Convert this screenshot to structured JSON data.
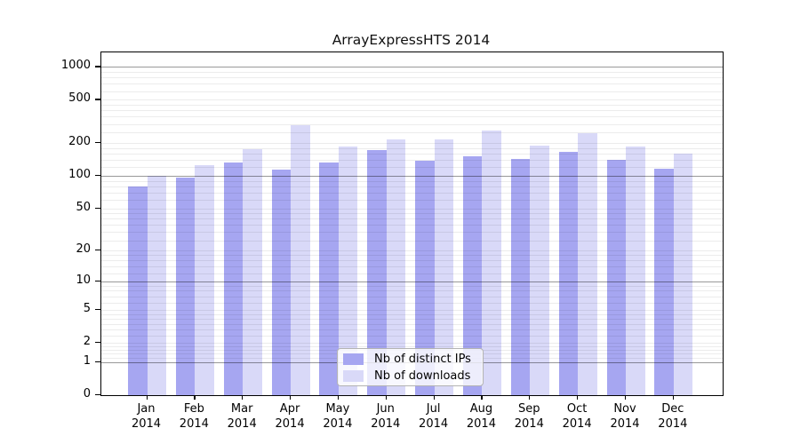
{
  "chart_data": {
    "type": "bar",
    "title": "ArrayExpressHTS 2014",
    "categories": [
      "Jan",
      "Feb",
      "Mar",
      "Apr",
      "May",
      "Jun",
      "Jul",
      "Aug",
      "Sep",
      "Oct",
      "Nov",
      "Dec"
    ],
    "x_tick_year_line": "2014",
    "series": [
      {
        "name": "Nb of distinct IPs",
        "color": "#a6a6f1",
        "values": [
          80,
          96,
          132,
          114,
          132,
          172,
          137,
          152,
          143,
          165,
          141,
          117
        ]
      },
      {
        "name": "Nb of downloads",
        "color": "#d9d9f8",
        "values": [
          100,
          125,
          177,
          292,
          186,
          216,
          216,
          262,
          189,
          245,
          185,
          161
        ]
      }
    ],
    "y_ticks": [
      1000,
      500,
      200,
      100,
      50,
      20,
      10,
      5,
      2,
      1,
      0
    ],
    "y_scale": "log10(1+x)",
    "ylim": [
      0,
      1400
    ],
    "grid": true,
    "legend_position": "lower center",
    "colors": {
      "grid_minor": "#ececec",
      "grid_major": "#999999",
      "axis": "#000000",
      "background": "#ffffff"
    }
  }
}
